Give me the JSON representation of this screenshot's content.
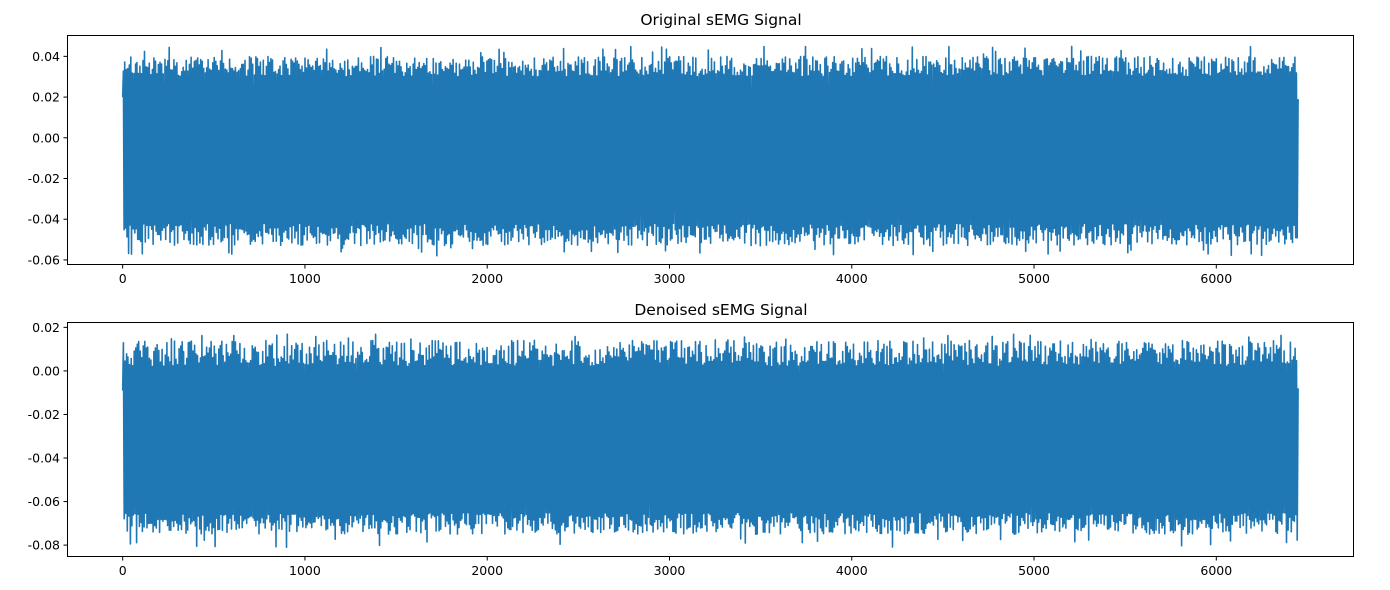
{
  "chart_data": [
    {
      "type": "line",
      "title": "Original sEMG Signal",
      "xlabel": "",
      "ylabel": "",
      "xlim": [
        -300,
        6750
      ],
      "ylim": [
        -0.062,
        0.05
      ],
      "x_ticks": [
        0,
        1000,
        2000,
        3000,
        4000,
        5000,
        6000
      ],
      "y_ticks": [
        -0.06,
        -0.04,
        -0.02,
        0.0,
        0.02,
        0.04
      ],
      "x_tick_labels": [
        "0",
        "1000",
        "2000",
        "3000",
        "4000",
        "5000",
        "6000"
      ],
      "y_tick_labels": [
        "-0.06",
        "-0.04",
        "-0.02",
        "0.00",
        "0.02",
        "0.04"
      ],
      "grid": false,
      "series": [
        {
          "color": "#1f77b4",
          "n_samples": 6450,
          "first_value": 0.02,
          "last_value": 0.019,
          "typical_peak_range": [
            0.03,
            0.04
          ],
          "typical_trough_range": [
            -0.053,
            -0.042
          ],
          "max_value": 0.045,
          "min_value": -0.058
        }
      ]
    },
    {
      "type": "line",
      "title": "Denoised sEMG Signal",
      "xlabel": "",
      "ylabel": "",
      "xlim": [
        -300,
        6750
      ],
      "ylim": [
        -0.085,
        0.022
      ],
      "x_ticks": [
        0,
        1000,
        2000,
        3000,
        4000,
        5000,
        6000
      ],
      "y_ticks": [
        -0.08,
        -0.06,
        -0.04,
        -0.02,
        0.0,
        0.02
      ],
      "x_tick_labels": [
        "0",
        "1000",
        "2000",
        "3000",
        "4000",
        "5000",
        "6000"
      ],
      "y_tick_labels": [
        "-0.08",
        "-0.06",
        "-0.04",
        "-0.02",
        "0.00",
        "0.02"
      ],
      "grid": false,
      "series": [
        {
          "color": "#1f77b4",
          "n_samples": 6450,
          "first_value": -0.009,
          "last_value": -0.008,
          "typical_peak_range": [
            0.002,
            0.014
          ],
          "typical_trough_range": [
            -0.075,
            -0.065
          ],
          "max_value": 0.017,
          "min_value": -0.081
        }
      ]
    }
  ]
}
